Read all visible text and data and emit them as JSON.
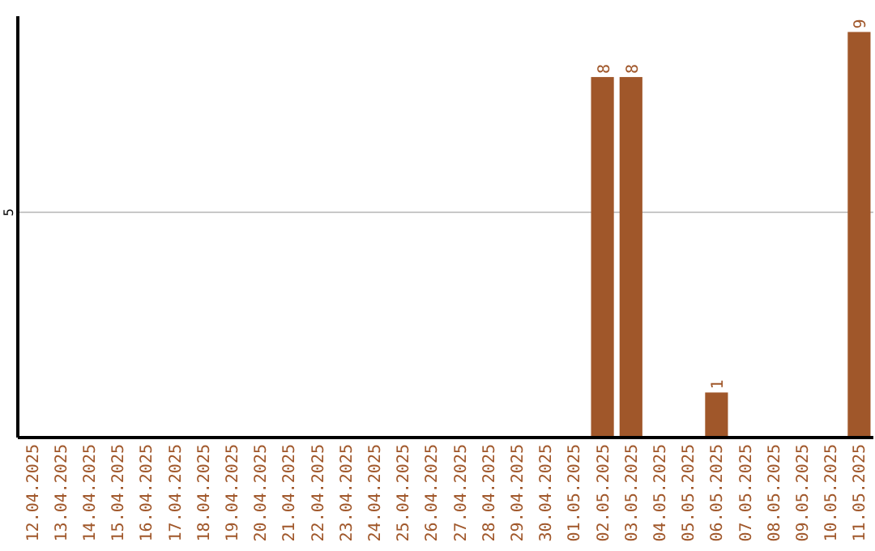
{
  "chart_data": {
    "type": "bar",
    "categories": [
      "12.04.2025",
      "13.04.2025",
      "14.04.2025",
      "15.04.2025",
      "16.04.2025",
      "17.04.2025",
      "18.04.2025",
      "19.04.2025",
      "20.04.2025",
      "21.04.2025",
      "22.04.2025",
      "23.04.2025",
      "24.04.2025",
      "25.04.2025",
      "26.04.2025",
      "27.04.2025",
      "28.04.2025",
      "29.04.2025",
      "30.04.2025",
      "01.05.2025",
      "02.05.2025",
      "03.05.2025",
      "04.05.2025",
      "05.05.2025",
      "06.05.2025",
      "07.05.2025",
      "08.05.2025",
      "09.05.2025",
      "10.05.2025",
      "11.05.2025"
    ],
    "values": [
      null,
      null,
      null,
      null,
      null,
      null,
      null,
      null,
      null,
      null,
      null,
      null,
      null,
      null,
      null,
      null,
      null,
      null,
      null,
      null,
      8,
      8,
      null,
      null,
      1,
      null,
      null,
      null,
      null,
      9
    ],
    "value_labels": [
      null,
      null,
      null,
      null,
      null,
      null,
      null,
      null,
      null,
      null,
      null,
      null,
      null,
      null,
      null,
      null,
      null,
      null,
      null,
      null,
      "8",
      "8",
      null,
      null,
      "1",
      null,
      null,
      null,
      null,
      "9"
    ],
    "color": "#a0572a",
    "ylim": [
      0,
      9.35
    ],
    "ref_lines": [
      {
        "axis": "y",
        "value": 5,
        "label": "5",
        "color": "#c8c8c8"
      }
    ]
  }
}
